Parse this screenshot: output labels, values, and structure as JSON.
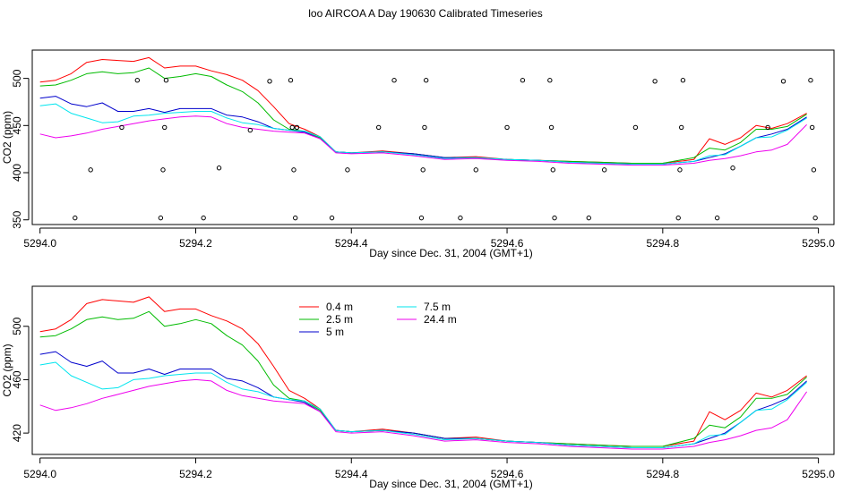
{
  "title": "loo AIRCOA A  Day 190630  Calibrated Timeseries",
  "colors": {
    "0.4 m": "#ff0000",
    "2.5 m": "#00bb00",
    "5 m": "#0000cc",
    "7.5 m": "#00e5ee",
    "24.4 m": "#ee00ee",
    "points": "#000000"
  },
  "chart_data": [
    {
      "type": "line",
      "xlabel": "Day since Dec. 31, 2004 (GMT+1)",
      "ylabel": "CO2 (ppm)",
      "xlim": [
        5293.99,
        5295.02
      ],
      "ylim": [
        345,
        530
      ],
      "xticks": [
        5294.0,
        5294.2,
        5294.4,
        5294.6,
        5294.8,
        5295.0
      ],
      "xtick_labels": [
        "5294.0",
        "5294.2",
        "5294.4",
        "5294.6",
        "5294.8",
        "5295.0"
      ],
      "yticks": [
        350,
        400,
        450,
        500
      ],
      "ytick_labels": [
        "350",
        "400",
        "450",
        "500"
      ],
      "legend": null,
      "series": [
        {
          "name": "0.4 m",
          "x": [
            5294.0,
            5294.02,
            5294.04,
            5294.06,
            5294.08,
            5294.1,
            5294.12,
            5294.14,
            5294.16,
            5294.18,
            5294.2,
            5294.22,
            5294.24,
            5294.26,
            5294.28,
            5294.3,
            5294.32,
            5294.34,
            5294.36,
            5294.38,
            5294.4,
            5294.44,
            5294.48,
            5294.52,
            5294.56,
            5294.6,
            5294.64,
            5294.68,
            5294.72,
            5294.76,
            5294.8,
            5294.84,
            5294.86,
            5294.88,
            5294.9,
            5294.92,
            5294.94,
            5294.96,
            5294.985
          ],
          "y": [
            496,
            498,
            505,
            517,
            520,
            519,
            518,
            522,
            511,
            513,
            513,
            508,
            504,
            498,
            487,
            470,
            452,
            446,
            438,
            422,
            421,
            423,
            420,
            416,
            417,
            414,
            413,
            412,
            411,
            410,
            410,
            414,
            436,
            430,
            437,
            450,
            447,
            452,
            463
          ]
        },
        {
          "name": "2.5 m",
          "x": [
            5294.0,
            5294.02,
            5294.04,
            5294.06,
            5294.08,
            5294.1,
            5294.12,
            5294.14,
            5294.16,
            5294.18,
            5294.2,
            5294.22,
            5294.24,
            5294.26,
            5294.28,
            5294.3,
            5294.32,
            5294.34,
            5294.36,
            5294.38,
            5294.4,
            5294.44,
            5294.48,
            5294.52,
            5294.56,
            5294.6,
            5294.64,
            5294.68,
            5294.72,
            5294.76,
            5294.8,
            5294.84,
            5294.86,
            5294.88,
            5294.9,
            5294.92,
            5294.94,
            5294.96,
            5294.985
          ],
          "y": [
            492,
            493,
            498,
            505,
            507,
            505,
            506,
            511,
            500,
            502,
            505,
            502,
            493,
            486,
            474,
            456,
            446,
            444,
            437,
            422,
            421,
            422,
            420,
            416,
            416,
            414,
            413,
            412,
            411,
            410,
            410,
            416,
            426,
            424,
            432,
            446,
            446,
            449,
            462
          ]
        },
        {
          "name": "5 m",
          "x": [
            5294.0,
            5294.02,
            5294.04,
            5294.06,
            5294.08,
            5294.1,
            5294.12,
            5294.14,
            5294.16,
            5294.18,
            5294.2,
            5294.22,
            5294.24,
            5294.26,
            5294.28,
            5294.3,
            5294.32,
            5294.34,
            5294.36,
            5294.38,
            5294.4,
            5294.44,
            5294.48,
            5294.52,
            5294.56,
            5294.6,
            5294.64,
            5294.68,
            5294.72,
            5294.76,
            5294.8,
            5294.84,
            5294.86,
            5294.88,
            5294.9,
            5294.92,
            5294.94,
            5294.96,
            5294.985
          ],
          "y": [
            479,
            481,
            473,
            470,
            474,
            465,
            465,
            468,
            464,
            468,
            468,
            468,
            461,
            459,
            454,
            447,
            445,
            443,
            436,
            422,
            421,
            422,
            420,
            416,
            416,
            414,
            413,
            411,
            410,
            409,
            409,
            412,
            416,
            420,
            428,
            437,
            441,
            446,
            459
          ]
        },
        {
          "name": "7.5 m",
          "x": [
            5294.0,
            5294.02,
            5294.04,
            5294.06,
            5294.08,
            5294.1,
            5294.12,
            5294.14,
            5294.16,
            5294.18,
            5294.2,
            5294.22,
            5294.24,
            5294.26,
            5294.28,
            5294.3,
            5294.32,
            5294.34,
            5294.36,
            5294.38,
            5294.4,
            5294.44,
            5294.48,
            5294.52,
            5294.56,
            5294.6,
            5294.64,
            5294.68,
            5294.72,
            5294.76,
            5294.8,
            5294.84,
            5294.86,
            5294.88,
            5294.9,
            5294.92,
            5294.94,
            5294.96,
            5294.985
          ],
          "y": [
            471,
            473,
            463,
            458,
            453,
            454,
            460,
            461,
            463,
            464,
            465,
            465,
            458,
            453,
            451,
            447,
            445,
            444,
            438,
            422,
            421,
            422,
            419,
            415,
            416,
            414,
            413,
            411,
            410,
            409,
            409,
            412,
            418,
            419,
            428,
            437,
            438,
            445,
            458
          ]
        },
        {
          "name": "24.4 m",
          "x": [
            5294.0,
            5294.02,
            5294.04,
            5294.06,
            5294.08,
            5294.1,
            5294.12,
            5294.14,
            5294.16,
            5294.18,
            5294.2,
            5294.22,
            5294.24,
            5294.26,
            5294.28,
            5294.3,
            5294.32,
            5294.34,
            5294.36,
            5294.38,
            5294.4,
            5294.44,
            5294.48,
            5294.52,
            5294.56,
            5294.6,
            5294.64,
            5294.68,
            5294.72,
            5294.76,
            5294.8,
            5294.84,
            5294.86,
            5294.88,
            5294.9,
            5294.92,
            5294.94,
            5294.96,
            5294.985
          ],
          "y": [
            441,
            437,
            439,
            442,
            446,
            449,
            452,
            455,
            457,
            459,
            460,
            459,
            452,
            448,
            446,
            444,
            443,
            442,
            436,
            421,
            420,
            421,
            418,
            414,
            415,
            413,
            412,
            410,
            409,
            408,
            408,
            410,
            413,
            415,
            418,
            422,
            424,
            430,
            451
          ]
        },
        {
          "name": "points",
          "mode": "markers",
          "x": [
            5294.045,
            5294.065,
            5294.105,
            5294.125,
            5294.155,
            5294.158,
            5294.16,
            5294.162,
            5294.21,
            5294.23,
            5294.27,
            5294.295,
            5294.322,
            5294.324,
            5294.326,
            5294.328,
            5294.33,
            5294.375,
            5294.395,
            5294.435,
            5294.455,
            5294.49,
            5294.492,
            5294.494,
            5294.496,
            5294.54,
            5294.56,
            5294.6,
            5294.62,
            5294.655,
            5294.657,
            5294.659,
            5294.661,
            5294.705,
            5294.725,
            5294.765,
            5294.79,
            5294.82,
            5294.822,
            5294.824,
            5294.826,
            5294.87,
            5294.89,
            5294.935,
            5294.955,
            5294.99,
            5294.992,
            5294.994,
            5294.996
          ],
          "y": [
            352,
            403,
            448,
            498,
            352,
            403,
            448,
            498,
            352,
            405,
            445,
            497,
            498,
            448,
            403,
            352,
            448,
            352,
            403,
            448,
            498,
            352,
            403,
            448,
            498,
            352,
            403,
            448,
            498,
            498,
            448,
            403,
            352,
            352,
            403,
            448,
            497,
            352,
            403,
            448,
            498,
            352,
            405,
            448,
            497,
            498,
            448,
            403,
            352
          ]
        }
      ]
    },
    {
      "type": "line",
      "xlabel": "Day since Dec. 31, 2004 (GMT+1)",
      "ylabel": "CO2 (ppm)",
      "xlim": [
        5293.99,
        5295.02
      ],
      "ylim": [
        404,
        530
      ],
      "xticks": [
        5294.0,
        5294.2,
        5294.4,
        5294.6,
        5294.8,
        5295.0
      ],
      "xtick_labels": [
        "5294.0",
        "5294.2",
        "5294.4",
        "5294.6",
        "5294.8",
        "5295.0"
      ],
      "yticks": [
        420,
        460,
        500
      ],
      "ytick_labels": [
        "420",
        "460",
        "500"
      ],
      "legend": "top-left",
      "series": [
        {
          "name": "0.4 m",
          "x": [
            5294.0,
            5294.02,
            5294.04,
            5294.06,
            5294.08,
            5294.1,
            5294.12,
            5294.14,
            5294.16,
            5294.18,
            5294.2,
            5294.22,
            5294.24,
            5294.26,
            5294.28,
            5294.3,
            5294.32,
            5294.34,
            5294.36,
            5294.38,
            5294.4,
            5294.44,
            5294.48,
            5294.52,
            5294.56,
            5294.6,
            5294.64,
            5294.68,
            5294.72,
            5294.76,
            5294.8,
            5294.84,
            5294.86,
            5294.88,
            5294.9,
            5294.92,
            5294.94,
            5294.96,
            5294.985
          ],
          "y": [
            496,
            498,
            505,
            517,
            520,
            519,
            518,
            522,
            511,
            513,
            513,
            508,
            504,
            498,
            487,
            470,
            452,
            446,
            438,
            422,
            421,
            423,
            420,
            416,
            417,
            414,
            413,
            412,
            411,
            410,
            410,
            414,
            436,
            430,
            437,
            450,
            447,
            452,
            463
          ]
        },
        {
          "name": "2.5 m",
          "x": [
            5294.0,
            5294.02,
            5294.04,
            5294.06,
            5294.08,
            5294.1,
            5294.12,
            5294.14,
            5294.16,
            5294.18,
            5294.2,
            5294.22,
            5294.24,
            5294.26,
            5294.28,
            5294.3,
            5294.32,
            5294.34,
            5294.36,
            5294.38,
            5294.4,
            5294.44,
            5294.48,
            5294.52,
            5294.56,
            5294.6,
            5294.64,
            5294.68,
            5294.72,
            5294.76,
            5294.8,
            5294.84,
            5294.86,
            5294.88,
            5294.9,
            5294.92,
            5294.94,
            5294.96,
            5294.985
          ],
          "y": [
            492,
            493,
            498,
            505,
            507,
            505,
            506,
            511,
            500,
            502,
            505,
            502,
            493,
            486,
            474,
            456,
            446,
            444,
            437,
            422,
            421,
            422,
            420,
            416,
            416,
            414,
            413,
            412,
            411,
            410,
            410,
            416,
            426,
            424,
            432,
            446,
            446,
            449,
            462
          ]
        },
        {
          "name": "5 m",
          "x": [
            5294.0,
            5294.02,
            5294.04,
            5294.06,
            5294.08,
            5294.1,
            5294.12,
            5294.14,
            5294.16,
            5294.18,
            5294.2,
            5294.22,
            5294.24,
            5294.26,
            5294.28,
            5294.3,
            5294.32,
            5294.34,
            5294.36,
            5294.38,
            5294.4,
            5294.44,
            5294.48,
            5294.52,
            5294.56,
            5294.6,
            5294.64,
            5294.68,
            5294.72,
            5294.76,
            5294.8,
            5294.84,
            5294.86,
            5294.88,
            5294.9,
            5294.92,
            5294.94,
            5294.96,
            5294.985
          ],
          "y": [
            479,
            481,
            473,
            470,
            474,
            465,
            465,
            468,
            464,
            468,
            468,
            468,
            461,
            459,
            454,
            447,
            445,
            443,
            436,
            422,
            421,
            422,
            420,
            416,
            416,
            414,
            413,
            411,
            410,
            409,
            409,
            412,
            416,
            420,
            428,
            437,
            441,
            446,
            459
          ]
        },
        {
          "name": "7.5 m",
          "x": [
            5294.0,
            5294.02,
            5294.04,
            5294.06,
            5294.08,
            5294.1,
            5294.12,
            5294.14,
            5294.16,
            5294.18,
            5294.2,
            5294.22,
            5294.24,
            5294.26,
            5294.28,
            5294.3,
            5294.32,
            5294.34,
            5294.36,
            5294.38,
            5294.4,
            5294.44,
            5294.48,
            5294.52,
            5294.56,
            5294.6,
            5294.64,
            5294.68,
            5294.72,
            5294.76,
            5294.8,
            5294.84,
            5294.86,
            5294.88,
            5294.9,
            5294.92,
            5294.94,
            5294.96,
            5294.985
          ],
          "y": [
            471,
            473,
            463,
            458,
            453,
            454,
            460,
            461,
            463,
            464,
            465,
            465,
            458,
            453,
            451,
            447,
            445,
            444,
            438,
            422,
            421,
            422,
            419,
            415,
            416,
            414,
            413,
            411,
            410,
            409,
            409,
            412,
            418,
            419,
            428,
            437,
            438,
            445,
            458
          ]
        },
        {
          "name": "24.4 m",
          "x": [
            5294.0,
            5294.02,
            5294.04,
            5294.06,
            5294.08,
            5294.1,
            5294.12,
            5294.14,
            5294.16,
            5294.18,
            5294.2,
            5294.22,
            5294.24,
            5294.26,
            5294.28,
            5294.3,
            5294.32,
            5294.34,
            5294.36,
            5294.38,
            5294.4,
            5294.44,
            5294.48,
            5294.52,
            5294.56,
            5294.6,
            5294.64,
            5294.68,
            5294.72,
            5294.76,
            5294.8,
            5294.84,
            5294.86,
            5294.88,
            5294.9,
            5294.92,
            5294.94,
            5294.96,
            5294.985
          ],
          "y": [
            441,
            437,
            439,
            442,
            446,
            449,
            452,
            455,
            457,
            459,
            460,
            459,
            452,
            448,
            446,
            444,
            443,
            442,
            436,
            421,
            420,
            421,
            418,
            414,
            415,
            413,
            412,
            410,
            409,
            408,
            408,
            410,
            413,
            415,
            418,
            422,
            424,
            430,
            451
          ]
        }
      ]
    }
  ]
}
